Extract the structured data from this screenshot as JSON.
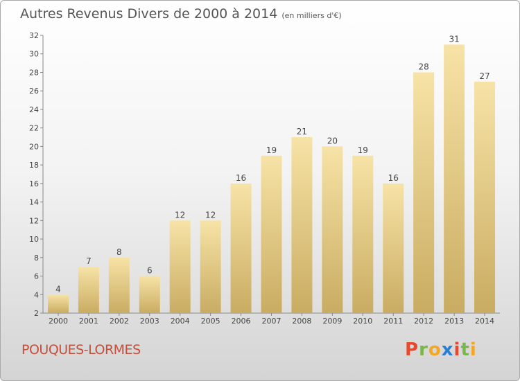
{
  "title": "Autres Revenus Divers de 2000 à 2014",
  "subtitle": "(en milliers d'€)",
  "commune": "POUQUES-LORMES",
  "brand": {
    "letters": [
      "P",
      "r",
      "o",
      "x",
      "i",
      "t",
      "i"
    ],
    "colors": [
      "#e8482c",
      "#7ab648",
      "#f5a623",
      "#2a7fd4",
      "#e8482c",
      "#7ab648",
      "#f5a623"
    ]
  },
  "chart_data": {
    "type": "bar",
    "categories": [
      "2000",
      "2001",
      "2002",
      "2003",
      "2004",
      "2005",
      "2006",
      "2007",
      "2008",
      "2009",
      "2010",
      "2011",
      "2012",
      "2013",
      "2014"
    ],
    "values": [
      4,
      7,
      8,
      6,
      12,
      12,
      16,
      19,
      21,
      20,
      19,
      16,
      28,
      31,
      27
    ],
    "ylim": [
      2,
      32
    ],
    "yticks": [
      2,
      4,
      6,
      8,
      10,
      12,
      14,
      16,
      18,
      20,
      22,
      24,
      26,
      28,
      30,
      32
    ],
    "grid": false,
    "bar_color_top": "#f7e3a6",
    "bar_color_bottom": "#c9ac62"
  }
}
